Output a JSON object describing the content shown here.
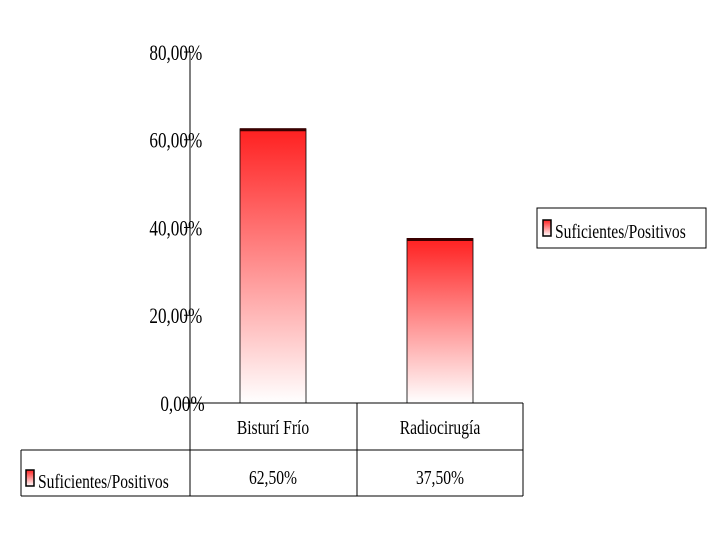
{
  "chart_data": {
    "type": "bar",
    "categories": [
      "Bisturí Frío",
      "Radiocirugía"
    ],
    "series": [
      {
        "name": "Suficientes/Positivos",
        "values": [
          62.5,
          37.5
        ],
        "labels": [
          "62,50%",
          "37,50%"
        ],
        "color": "#ff2020"
      }
    ],
    "yticks": [
      {
        "value": 0,
        "label": "0,00%"
      },
      {
        "value": 20,
        "label": "20,00%"
      },
      {
        "value": 40,
        "label": "40,00%"
      },
      {
        "value": 60,
        "label": "60,00%"
      },
      {
        "value": 80,
        "label": "80,00%"
      }
    ],
    "ylim": [
      0,
      80
    ],
    "grid": false,
    "legend": {
      "position": "right",
      "entries": [
        "Suficientes/Positivos"
      ]
    },
    "data_table": true
  }
}
